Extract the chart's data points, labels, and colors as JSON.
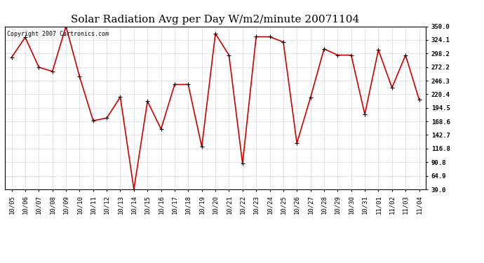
{
  "title": "Solar Radiation Avg per Day W/m2/minute 20071104",
  "copyright": "Copyright 2007 Cartronics.com",
  "x_labels": [
    "10/05",
    "10/06",
    "10/07",
    "10/08",
    "10/09",
    "10/10",
    "10/11",
    "10/12",
    "10/13",
    "10/14",
    "10/15",
    "10/16",
    "10/17",
    "10/18",
    "10/19",
    "10/20",
    "10/21",
    "10/22",
    "10/23",
    "10/24",
    "10/25",
    "10/26",
    "10/27",
    "10/28",
    "10/29",
    "10/30",
    "10/31",
    "11/01",
    "11/02",
    "11/03",
    "11/04"
  ],
  "y_values": [
    291.0,
    329.0,
    272.0,
    264.0,
    350.0,
    254.0,
    170.0,
    175.0,
    215.0,
    39.0,
    207.0,
    154.0,
    239.0,
    239.0,
    120.0,
    336.0,
    295.0,
    88.0,
    330.0,
    330.0,
    320.0,
    127.0,
    214.0,
    307.0,
    295.0,
    295.0,
    182.0,
    305.0,
    233.0,
    295.0,
    210.0
  ],
  "line_color": "#cc0000",
  "bg_color": "#ffffff",
  "grid_color": "#bbbbbb",
  "yticks": [
    39.0,
    64.9,
    90.8,
    116.8,
    142.7,
    168.6,
    194.5,
    220.4,
    246.3,
    272.2,
    298.2,
    324.1,
    350.0
  ],
  "ylim": [
    39.0,
    350.0
  ],
  "title_fontsize": 11,
  "tick_fontsize": 6.5,
  "copyright_fontsize": 6
}
